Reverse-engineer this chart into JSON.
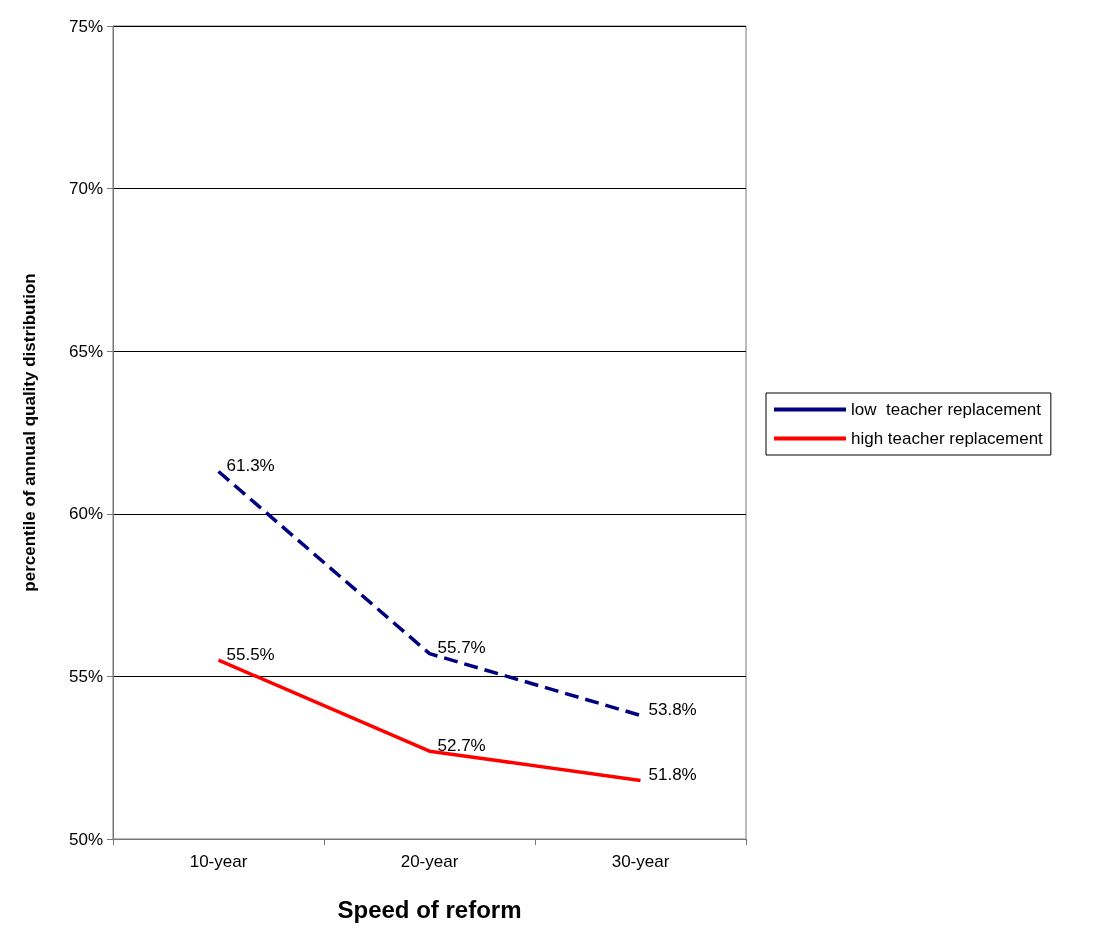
{
  "chart_data": {
    "type": "line",
    "xlabel": "Speed of reform",
    "ylabel": "percentile of annual quality distribution",
    "categories": [
      "10-year",
      "20-year",
      "30-year"
    ],
    "series": [
      {
        "name": "low  teacher replacement",
        "color": "#000080",
        "line_style": "dashed",
        "values": [
          61.3,
          55.7,
          53.8
        ],
        "value_labels": [
          "61.3%",
          "55.7%",
          "53.8%"
        ]
      },
      {
        "name": "high teacher replacement",
        "color": "#ff0000",
        "line_style": "solid",
        "values": [
          55.5,
          52.7,
          51.8
        ],
        "value_labels": [
          "55.5%",
          "52.7%",
          "51.8%"
        ]
      }
    ],
    "ylim": [
      50,
      75
    ],
    "yticks": [
      {
        "value": 50,
        "label": "50%"
      },
      {
        "value": 55,
        "label": "55%"
      },
      {
        "value": 60,
        "label": "60%"
      },
      {
        "value": 65,
        "label": "65%"
      },
      {
        "value": 70,
        "label": "70%"
      },
      {
        "value": 75,
        "label": "75%"
      }
    ],
    "grid": "y",
    "legend": "right",
    "marker": "none"
  }
}
